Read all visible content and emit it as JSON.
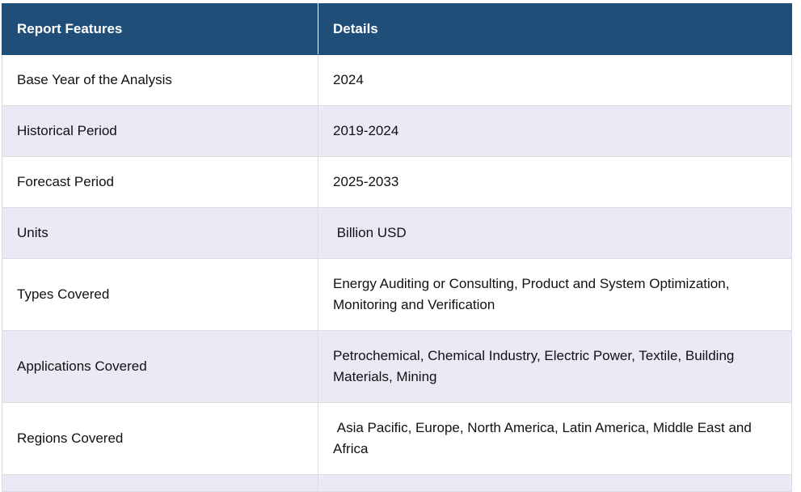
{
  "table": {
    "headers": [
      "Report Features",
      "Details"
    ],
    "rows": [
      {
        "feature": "Base Year of the Analysis",
        "details": "2024"
      },
      {
        "feature": "Historical Period",
        "details": "2019-2024"
      },
      {
        "feature": "Forecast Period",
        "details": "2025-2033"
      },
      {
        "feature": "Units",
        "details": " Billion USD"
      },
      {
        "feature": "Types Covered",
        "details": "Energy Auditing or Consulting, Product and System Optimization, Monitoring and Verification"
      },
      {
        "feature": "Applications Covered",
        "details": "Petrochemical, Chemical Industry, Electric Power, Textile, Building Materials, Mining"
      },
      {
        "feature": "Regions Covered",
        "details": " Asia Pacific, Europe, North America, Latin America, Middle East and Africa"
      }
    ]
  }
}
